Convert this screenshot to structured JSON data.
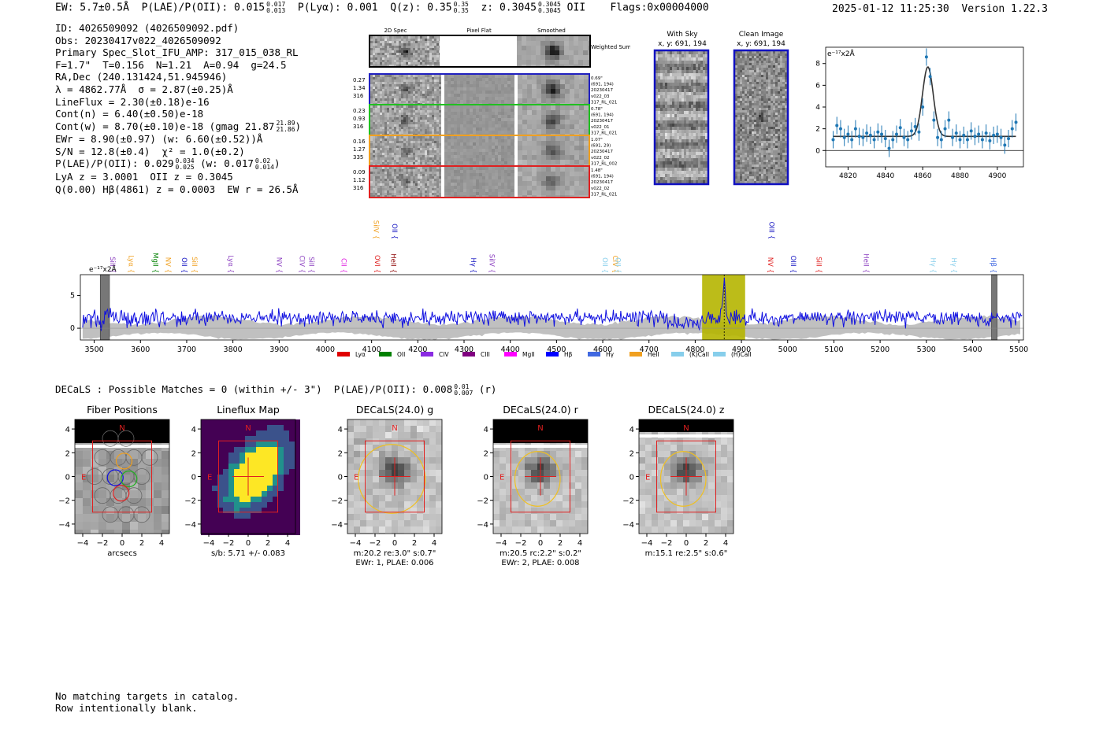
{
  "header": {
    "left_ew": "EW: 5.7±0.5Å",
    "left_plae": "P(LAE)/P(OII): 0.015",
    "left_plae_hi": "0.017",
    "left_plae_lo": "0.013",
    "left_plya": "P(Lyα): 0.001",
    "left_qz": "Q(z): 0.35",
    "left_qz_hi": "0.35",
    "left_qz_lo": "0.35",
    "left_z": "z: 0.3045",
    "left_z_hi": "0.3045",
    "left_z_lo": "0.3045",
    "left_line": "OII",
    "left_flags": "Flags:0x00004000",
    "timestamp": "2025-01-12 11:25:30",
    "version": "Version 1.22.3"
  },
  "info": {
    "id": "ID: 4026509092 (4026509092.pdf)",
    "obs": "Obs: 20230417v022_4026509092",
    "primary": "Primary Spec_Slot_IFU_AMP: 317_015_038_RL",
    "params": "F=1.7\"  T=0.156  N=1.21  A=0.94  g=24.5",
    "radec": "RA,Dec (240.131424,51.945946)",
    "lambda": "λ = 4862.77Å  σ = 2.87(±0.25)Å",
    "lineflux": "LineFlux = 2.30(±0.18)e-16",
    "cont_n": "Cont(n) = 6.40(±0.50)e-18",
    "cont_w": "Cont(w) = 8.70(±0.10)e-18 (gmag 21.87",
    "cont_w_hi": "21.89",
    "cont_w_lo": "21.86",
    "cont_w_end": ")",
    "ewr": "EWr = 8.90(±0.97) (w: 6.60(±0.52))Å",
    "sn": "S/N = 12.8(±0.4)  χ² = 1.0(±0.2)",
    "plae": "P(LAE)/P(OII): 0.029",
    "plae_hi": "0.034",
    "plae_lo": "0.025",
    "plae_w": " (w: 0.017",
    "plae_w_hi": "0.02",
    "plae_w_lo": "0.014",
    "plae_end": ")",
    "lya": "LyA z = 3.0001  OII z = 0.3045",
    "q": "Q(0.00) Hβ(4861) z = 0.0003  EW r = 26.5Å"
  },
  "cutouts": {
    "col_labels": [
      "2D Spec",
      "Pixel Flat",
      "Smoothed"
    ],
    "weighted_label": "Weighted Sum",
    "rows": [
      {
        "stats": [
          "0.27",
          "1.34",
          "316"
        ],
        "meta": [
          "0.69\"",
          "(691, 194)",
          "20230417",
          "v022_03",
          "317_RL_021"
        ],
        "color": "#2020c0"
      },
      {
        "stats": [
          "0.23",
          "0.93",
          "316"
        ],
        "meta": [
          "0.78\"",
          "(691, 194)",
          "20230417",
          "v022_01",
          "317_RL_021"
        ],
        "color": "#20c020"
      },
      {
        "stats": [
          "0.16",
          "1.27",
          "335"
        ],
        "meta": [
          "1.07\"",
          "(691, 29)",
          "20230417",
          "v022_02",
          "317_RL_002"
        ],
        "color": "#f0a020"
      },
      {
        "stats": [
          "0.09",
          "1.12",
          "316"
        ],
        "meta": [
          "1.48\"",
          "(691, 194)",
          "20230417",
          "v022_02",
          "317_RL_021"
        ],
        "color": "#e02020"
      }
    ],
    "with_sky_title": "With Sky",
    "with_sky_xy": "x, y: 691, 194",
    "clean_title": "Clean Image",
    "clean_xy": "x, y: 691, 194"
  },
  "colors": {
    "blue_line": "#1010e0",
    "fit_points": "#1f77b4",
    "highlight": "#b5b500",
    "noise": "#c0c0c0",
    "red_box": "#e02020",
    "yellow_ellipse": "#f0c020"
  },
  "chart_data": [
    {
      "type": "scatter",
      "name": "line-fit-inset",
      "unit_label": "e⁻¹⁷x2Å",
      "xlim": [
        4808,
        4914
      ],
      "ylim": [
        -1.5,
        9.5
      ],
      "xticks": [
        4820,
        4840,
        4860,
        4880,
        4900
      ],
      "yticks": [
        0,
        2,
        4,
        6,
        8
      ],
      "x": [
        4812,
        4814,
        4816,
        4818,
        4820,
        4822,
        4824,
        4826,
        4828,
        4830,
        4832,
        4834,
        4836,
        4838,
        4840,
        4842,
        4844,
        4846,
        4848,
        4850,
        4852,
        4854,
        4856,
        4858,
        4860,
        4862,
        4864,
        4866,
        4868,
        4870,
        4872,
        4874,
        4876,
        4878,
        4880,
        4882,
        4884,
        4886,
        4888,
        4890,
        4892,
        4894,
        4896,
        4898,
        4900,
        4902,
        4904,
        4906,
        4908,
        4910
      ],
      "y": [
        1.0,
        2.3,
        2.0,
        1.2,
        1.5,
        1.0,
        2.0,
        1.3,
        1.2,
        1.6,
        1.4,
        1.0,
        1.7,
        1.5,
        1.1,
        0.2,
        1.0,
        1.5,
        2.1,
        1.2,
        1.0,
        1.8,
        2.2,
        1.7,
        4.0,
        8.6,
        6.8,
        2.8,
        1.2,
        1.0,
        2.0,
        2.8,
        1.2,
        1.6,
        1.0,
        1.4,
        1.0,
        1.8,
        1.3,
        1.5,
        1.0,
        1.6,
        0.9,
        1.4,
        1.5,
        1.2,
        0.5,
        1.1,
        2.0,
        2.6
      ],
      "err": 0.8,
      "fit": {
        "continuum": 1.3,
        "amplitude": 6.4,
        "center": 4862.77,
        "sigma": 2.87
      }
    },
    {
      "type": "line",
      "name": "full-spectrum",
      "unit_label": "e⁻¹⁷x2Å",
      "xlim": [
        3470,
        5510
      ],
      "ylim": [
        -1.8,
        8.2
      ],
      "xticks": [
        3500,
        3600,
        3700,
        3800,
        3900,
        4000,
        4100,
        4200,
        4300,
        4400,
        4500,
        4600,
        4700,
        4800,
        4900,
        5000,
        5100,
        5200,
        5300,
        5400,
        5500
      ],
      "yticks": [
        0,
        5
      ],
      "peak": {
        "x": 4862.77,
        "y": 7.6
      },
      "highlight_band": [
        4815,
        4908
      ],
      "masked_bands": [
        [
          3513,
          3533
        ],
        [
          5441,
          5453
        ]
      ],
      "vline": 4862.77,
      "line_labels": [
        {
          "name": "SiII",
          "x": 3535,
          "color": "#8b3fc0",
          "level": "mid"
        },
        {
          "name": "Lyα",
          "x": 3575,
          "color": "#f0a020",
          "level": "mid"
        },
        {
          "name": "MgII",
          "x": 3628,
          "color": "#008000",
          "level": "mid"
        },
        {
          "name": "NV",
          "x": 3655,
          "color": "#f0a020",
          "level": "mid"
        },
        {
          "name": "OII",
          "x": 3690,
          "color": "#1010c0",
          "level": "mid"
        },
        {
          "name": "SiII",
          "x": 3712,
          "color": "#f0a020",
          "level": "mid"
        },
        {
          "name": "Lyα",
          "x": 3790,
          "color": "#8b3fc0",
          "level": "mid"
        },
        {
          "name": "NV",
          "x": 3895,
          "color": "#8b3fc0",
          "level": "mid"
        },
        {
          "name": "CIV",
          "x": 3945,
          "color": "#8b3fc0",
          "level": "mid"
        },
        {
          "name": "SiII",
          "x": 3965,
          "color": "#8b3fc0",
          "level": "mid"
        },
        {
          "name": "CII",
          "x": 4035,
          "color": "#e020e0",
          "level": "mid"
        },
        {
          "name": "SiIV",
          "x": 4105,
          "color": "#f0a020",
          "level": "high"
        },
        {
          "name": "OII",
          "x": 4145,
          "color": "#1010c0",
          "level": "high"
        },
        {
          "name": "OVI",
          "x": 4107,
          "color": "#e02020",
          "level": "mid"
        },
        {
          "name": "HeII",
          "x": 4142,
          "color": "#8b0000",
          "level": "mid"
        },
        {
          "name": "Hγ",
          "x": 4315,
          "color": "#1010c0",
          "level": "mid"
        },
        {
          "name": "SiIV",
          "x": 4355,
          "color": "#8b3fc0",
          "level": "mid"
        },
        {
          "name": "OII",
          "x": 4600,
          "color": "#87ceeb",
          "level": "mid"
        },
        {
          "name": "CIV",
          "x": 4622,
          "color": "#f0a020",
          "level": "mid"
        },
        {
          "name": "OII",
          "x": 4628,
          "color": "#87ceeb",
          "level": "mid"
        },
        {
          "name": "OIII",
          "x": 4960,
          "color": "#1010c0",
          "level": "high"
        },
        {
          "name": "NV",
          "x": 4958,
          "color": "#e02020",
          "level": "mid"
        },
        {
          "name": "OIII",
          "x": 5007,
          "color": "#1010c0",
          "level": "mid"
        },
        {
          "name": "SiII",
          "x": 5063,
          "color": "#e02020",
          "level": "mid"
        },
        {
          "name": "HeII",
          "x": 5165,
          "color": "#8b3fc0",
          "level": "mid"
        },
        {
          "name": "Hγ",
          "x": 5310,
          "color": "#87ceeb",
          "level": "mid"
        },
        {
          "name": "Hγ",
          "x": 5355,
          "color": "#87ceeb",
          "level": "mid"
        },
        {
          "name": "Hβ",
          "x": 5440,
          "color": "#4169e1",
          "level": "mid"
        }
      ],
      "legend": [
        {
          "name": "Lyα",
          "color": "#e00000"
        },
        {
          "name": "OII",
          "color": "#008000"
        },
        {
          "name": "CIV",
          "color": "#8a2be2"
        },
        {
          "name": "CIII",
          "color": "#800080"
        },
        {
          "name": "MgII",
          "color": "#ff00ff"
        },
        {
          "name": "Hβ",
          "color": "#0000ff"
        },
        {
          "name": "Hγ",
          "color": "#4169e1"
        },
        {
          "name": "HeII",
          "color": "#f0a020"
        },
        {
          "name": "(K)CaII",
          "color": "#87ceeb"
        },
        {
          "name": "(H)CaII",
          "color": "#87ceeb"
        }
      ]
    }
  ],
  "decals": {
    "title": "DECaLS : Possible Matches = 0 (within +/- 3\")  P(LAE)/P(OII): 0.008",
    "title_hi": "0.01",
    "title_lo": "0.007",
    "title_end": "(r)",
    "panels": [
      {
        "title": "Fiber Positions",
        "caption": [
          "arcsecs"
        ],
        "kind": "fiber"
      },
      {
        "title": "Lineflux Map",
        "caption": [
          "s/b: 5.71 +/- 0.083"
        ],
        "kind": "lineflux"
      },
      {
        "title": "DECaLS(24.0) g",
        "caption": [
          "m:20.2  re:3.0\"  s:0.7\"",
          "EWr: 1, PLAE: 0.006"
        ],
        "kind": "g"
      },
      {
        "title": "DECaLS(24.0) r",
        "caption": [
          "m:20.5 rc:2.2\"  s:0.2\"",
          "EWr: 2, PLAE: 0.008"
        ],
        "kind": "r"
      },
      {
        "title": "DECaLS(24.0) z",
        "caption": [
          "m:15.1  re:2.5\"  s:0.6\""
        ],
        "kind": "z"
      }
    ],
    "axis_ticks": [
      "−4",
      "−2",
      "0",
      "2",
      "4"
    ],
    "north": "N",
    "east": "E"
  },
  "footer": {
    "line1": "No matching targets in catalog.",
    "line2": "Row intentionally blank."
  }
}
